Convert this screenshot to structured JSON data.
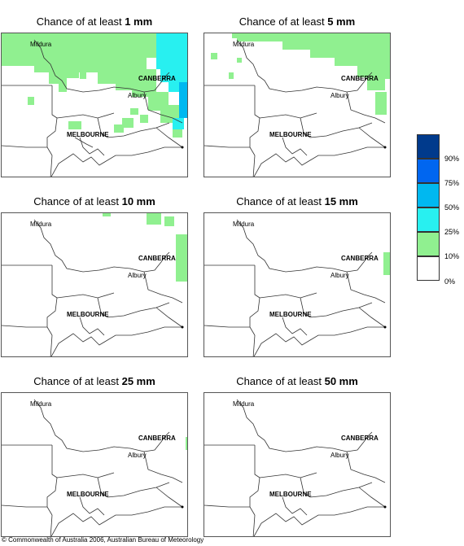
{
  "panels": [
    {
      "prefix": "Chance of at least",
      "amount": "1 mm"
    },
    {
      "prefix": "Chance of at least",
      "amount": "5 mm"
    },
    {
      "prefix": "Chance of at least",
      "amount": "10 mm"
    },
    {
      "prefix": "Chance of at least",
      "amount": "15 mm"
    },
    {
      "prefix": "Chance of at least",
      "amount": "25 mm"
    },
    {
      "prefix": "Chance of at least",
      "amount": "50 mm"
    }
  ],
  "places": {
    "mildura": "Mildura",
    "canberra": "CANBERRA",
    "albury": "Albury",
    "melbourne": "MELBOURNE"
  },
  "legend": {
    "colors": [
      "#003a8c",
      "#0066f0",
      "#00b8f0",
      "#28f0f0",
      "#90f090",
      "#ffffff"
    ],
    "labels": [
      "90%",
      "75%",
      "50%",
      "25%",
      "10%",
      "0%"
    ]
  },
  "footer": "© Commonwealth of Australia 2006, Australian Bureau of Meteorology"
}
